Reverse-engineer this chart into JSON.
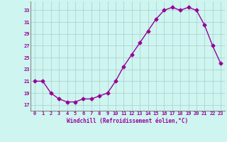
{
  "x": [
    0,
    1,
    2,
    3,
    4,
    5,
    6,
    7,
    8,
    9,
    10,
    11,
    12,
    13,
    14,
    15,
    16,
    17,
    18,
    19,
    20,
    21,
    22,
    23
  ],
  "y": [
    21,
    21,
    19,
    18,
    17.5,
    17.5,
    18,
    18,
    18.5,
    19,
    21,
    23.5,
    25.5,
    27.5,
    29.5,
    31.5,
    33,
    33.5,
    33,
    33.5,
    33,
    30.5,
    27,
    24
  ],
  "line_color": "#990099",
  "marker": "D",
  "marker_size": 2.5,
  "bg_color": "#cef5f0",
  "grid_color": "#aacccc",
  "xlabel": "Windchill (Refroidissement éolien,°C)",
  "xlabel_color": "#990099",
  "tick_color": "#990099",
  "ylim": [
    16,
    34.5
  ],
  "xlim": [
    -0.5,
    23.5
  ],
  "yticks": [
    17,
    19,
    21,
    23,
    25,
    27,
    29,
    31,
    33
  ],
  "xticks": [
    0,
    1,
    2,
    3,
    4,
    5,
    6,
    7,
    8,
    9,
    10,
    11,
    12,
    13,
    14,
    15,
    16,
    17,
    18,
    19,
    20,
    21,
    22,
    23
  ],
  "spine_color": "#888888",
  "linewidth": 1.0
}
